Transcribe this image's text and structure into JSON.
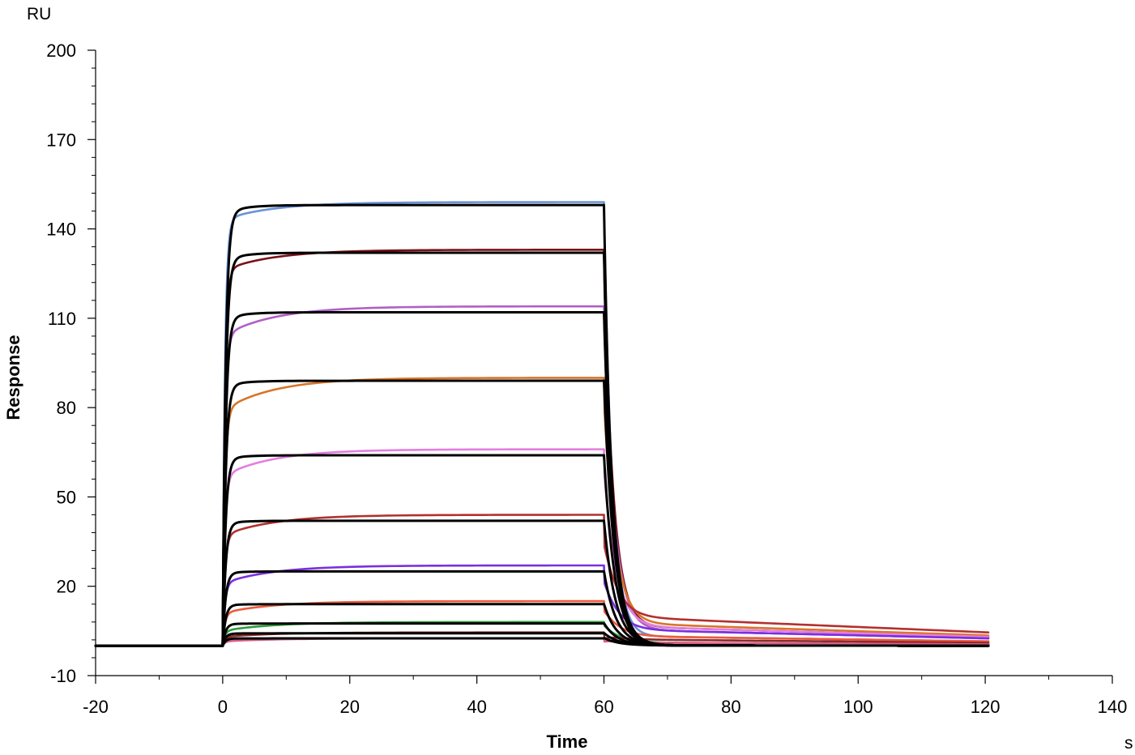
{
  "chart_data": {
    "type": "line",
    "title": "",
    "xlabel": "Time",
    "ylabel": "Response",
    "x_unit": "s",
    "y_unit": "RU",
    "xlim": [
      -20,
      140
    ],
    "ylim": [
      -10,
      200
    ],
    "x_ticks": [
      "-20",
      "0",
      "20",
      "40",
      "60",
      "80",
      "100",
      "120",
      "140"
    ],
    "y_ticks": [
      "-10",
      "20",
      "50",
      "80",
      "110",
      "140",
      "170",
      "200"
    ],
    "x_tick_values": [
      -20,
      0,
      20,
      40,
      60,
      80,
      100,
      120,
      140
    ],
    "y_tick_values": [
      -10,
      20,
      50,
      80,
      110,
      140,
      170,
      200
    ],
    "grid": false,
    "legend": "none",
    "model": {
      "association_start": 0,
      "association_end": 60,
      "dissociation_end": 120.5,
      "data_start": -20,
      "baseline": 0
    },
    "fit_color": "#000000",
    "series": [
      {
        "color": "#6a93d6",
        "plateau": 149,
        "fit_plateau": 148,
        "initial_dip": 143,
        "tail_end": 1.5,
        "fast_decay": 1.3
      },
      {
        "color": "#7b1115",
        "plateau": 133,
        "fit_plateau": 132,
        "initial_dip": 126,
        "tail_end": 3,
        "fast_decay": 1.5
      },
      {
        "color": "#b15fc8",
        "plateau": 114,
        "fit_plateau": 112,
        "initial_dip": 104,
        "tail_end": 2.5,
        "fast_decay": 1.6
      },
      {
        "color": "#d97527",
        "plateau": 90,
        "fit_plateau": 89,
        "initial_dip": 79,
        "tail_end": 3.5,
        "fast_decay": 1.7
      },
      {
        "color": "#e37ee0",
        "plateau": 66,
        "fit_plateau": 64,
        "initial_dip": 57,
        "tail_end": 3,
        "fast_decay": 1.8
      },
      {
        "color": "#b33030",
        "plateau": 44,
        "fit_plateau": 42,
        "initial_dip": 37,
        "tail_end": 4.5,
        "fast_decay": 1.9
      },
      {
        "color": "#7a2fe0",
        "plateau": 27,
        "fit_plateau": 25,
        "initial_dip": 21,
        "tail_end": 2.5,
        "fast_decay": 2.0
      },
      {
        "color": "#ee5a3a",
        "plateau": 15,
        "fit_plateau": 14,
        "initial_dip": 11,
        "tail_end": 1.5,
        "fast_decay": 2.1
      },
      {
        "color": "#2e9e3a",
        "plateau": 8,
        "fit_plateau": 7.5,
        "initial_dip": 5,
        "tail_end": 0.5,
        "fast_decay": 2.2
      },
      {
        "color": "#8b2a2a",
        "plateau": 4.5,
        "fit_plateau": 4.2,
        "initial_dip": 3,
        "tail_end": 1,
        "fast_decay": 2.3
      },
      {
        "color": "#d65c8a",
        "plateau": 2.5,
        "fit_plateau": 2.5,
        "initial_dip": 1.5,
        "tail_end": 0.5,
        "fast_decay": 2.4
      }
    ]
  }
}
